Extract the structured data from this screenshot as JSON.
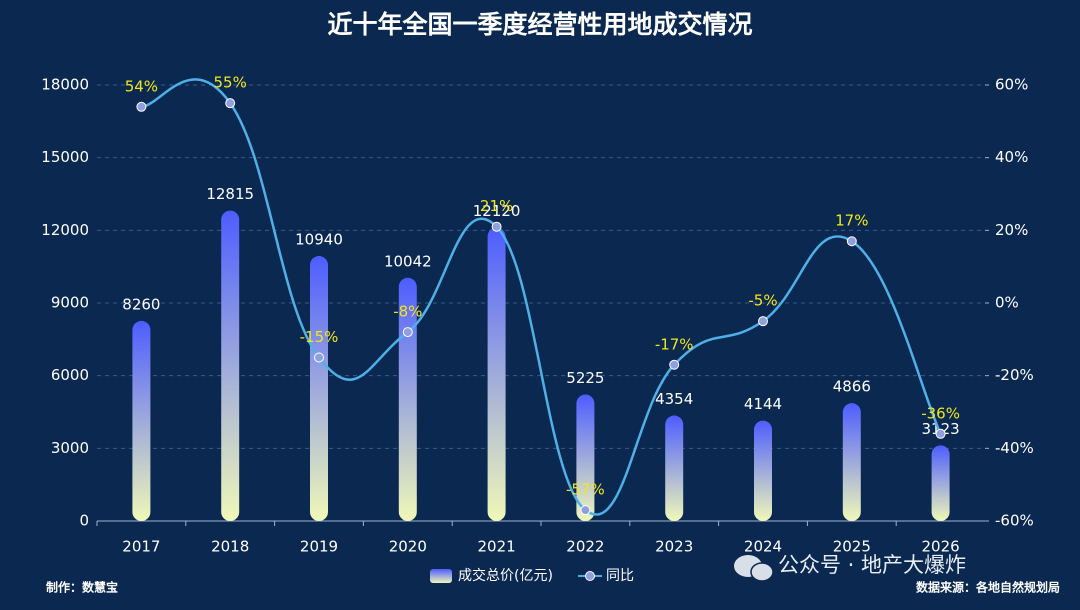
{
  "chart_data": {
    "type": "bar_line",
    "title": "近十年全国一季度经营性用地成交情况",
    "categories": [
      "2017",
      "2018",
      "2019",
      "2020",
      "2021",
      "2022",
      "2023",
      "2024",
      "2025",
      "2026"
    ],
    "series": [
      {
        "name": "成交总价(亿元)",
        "color": "#4d5dff",
        "values": [
          8260,
          12815,
          10940,
          10042,
          12120,
          5225,
          4354,
          4144,
          4866,
          3123
        ]
      },
      {
        "name": "同比",
        "color": "#4fb0e8",
        "axis": "y2",
        "values": [
          54,
          55,
          -15,
          -8,
          21,
          -57,
          -17,
          -5,
          17,
          -36
        ],
        "value_labels": [
          "54%",
          "55%",
          "-15%",
          "-8%",
          "21%",
          "-57%",
          "-17%",
          "-5%",
          "17%",
          "-36%"
        ]
      }
    ],
    "ylim": [
      0,
      18000
    ],
    "yticks": [
      0,
      3000,
      6000,
      9000,
      12000,
      15000,
      18000
    ],
    "y2lim": [
      -60,
      60
    ],
    "y2ticks": [
      {
        "value": -60,
        "label": "-60%"
      },
      {
        "value": -40,
        "label": "-40%"
      },
      {
        "value": -20,
        "label": "-20%"
      },
      {
        "value": 0,
        "label": "0%"
      },
      {
        "value": 20,
        "label": "20%"
      },
      {
        "value": 40,
        "label": "40%"
      },
      {
        "value": 60,
        "label": "60%"
      }
    ],
    "grid": true,
    "legend": "bottom",
    "footer_left": "制作：数慧宝",
    "footer_right": "数据来源：各地自然规划局",
    "watermark": "公众号 · 地产大爆炸"
  }
}
